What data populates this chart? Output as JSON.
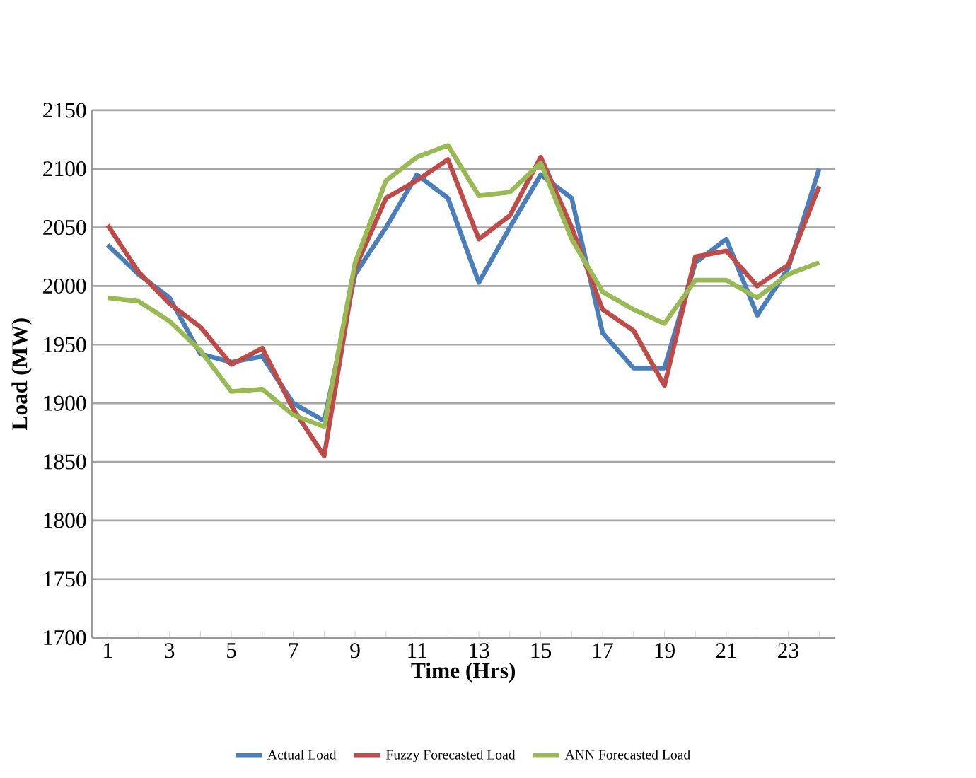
{
  "chart_data": {
    "type": "line",
    "xlabel": "Time (Hrs)",
    "ylabel": "Load (MW)",
    "categories": [
      "1",
      null,
      "3",
      null,
      "5",
      null,
      "7",
      null,
      "9",
      null,
      "11",
      null,
      "13",
      null,
      "15",
      null,
      "17",
      null,
      "19",
      null,
      "21",
      null,
      "23",
      null
    ],
    "series": [
      {
        "name": "Actual Load",
        "color": "#4a7ebb",
        "values": [
          2035,
          2010,
          1990,
          1942,
          1935,
          1940,
          1900,
          1885,
          2010,
          2050,
          2095,
          2075,
          2003,
          2050,
          2095,
          2075,
          1960,
          1930,
          1930,
          2020,
          2040,
          1975,
          2015,
          2100
        ]
      },
      {
        "name": "Fuzzy Forecasted Load",
        "color": "#be4b48",
        "values": [
          2052,
          2012,
          1985,
          1965,
          1933,
          1947,
          1895,
          1855,
          2015,
          2075,
          2090,
          2108,
          2040,
          2060,
          2110,
          2050,
          1980,
          1962,
          1915,
          2025,
          2030,
          2000,
          2018,
          2085
        ]
      },
      {
        "name": "ANN Forecasted Load",
        "color": "#98b954",
        "values": [
          1990,
          1987,
          1970,
          1945,
          1910,
          1912,
          1890,
          1880,
          2020,
          2090,
          2110,
          2120,
          2077,
          2080,
          2105,
          2040,
          1995,
          1980,
          1968,
          2005,
          2005,
          1990,
          2010,
          2020
        ]
      }
    ],
    "ylim": [
      1700,
      2150
    ],
    "yticks": [
      1700,
      1750,
      1800,
      1850,
      1900,
      1950,
      2000,
      2050,
      2100,
      2150
    ],
    "grid": "y",
    "legend": "bottom",
    "marker": "none",
    "line_style": "solid"
  }
}
